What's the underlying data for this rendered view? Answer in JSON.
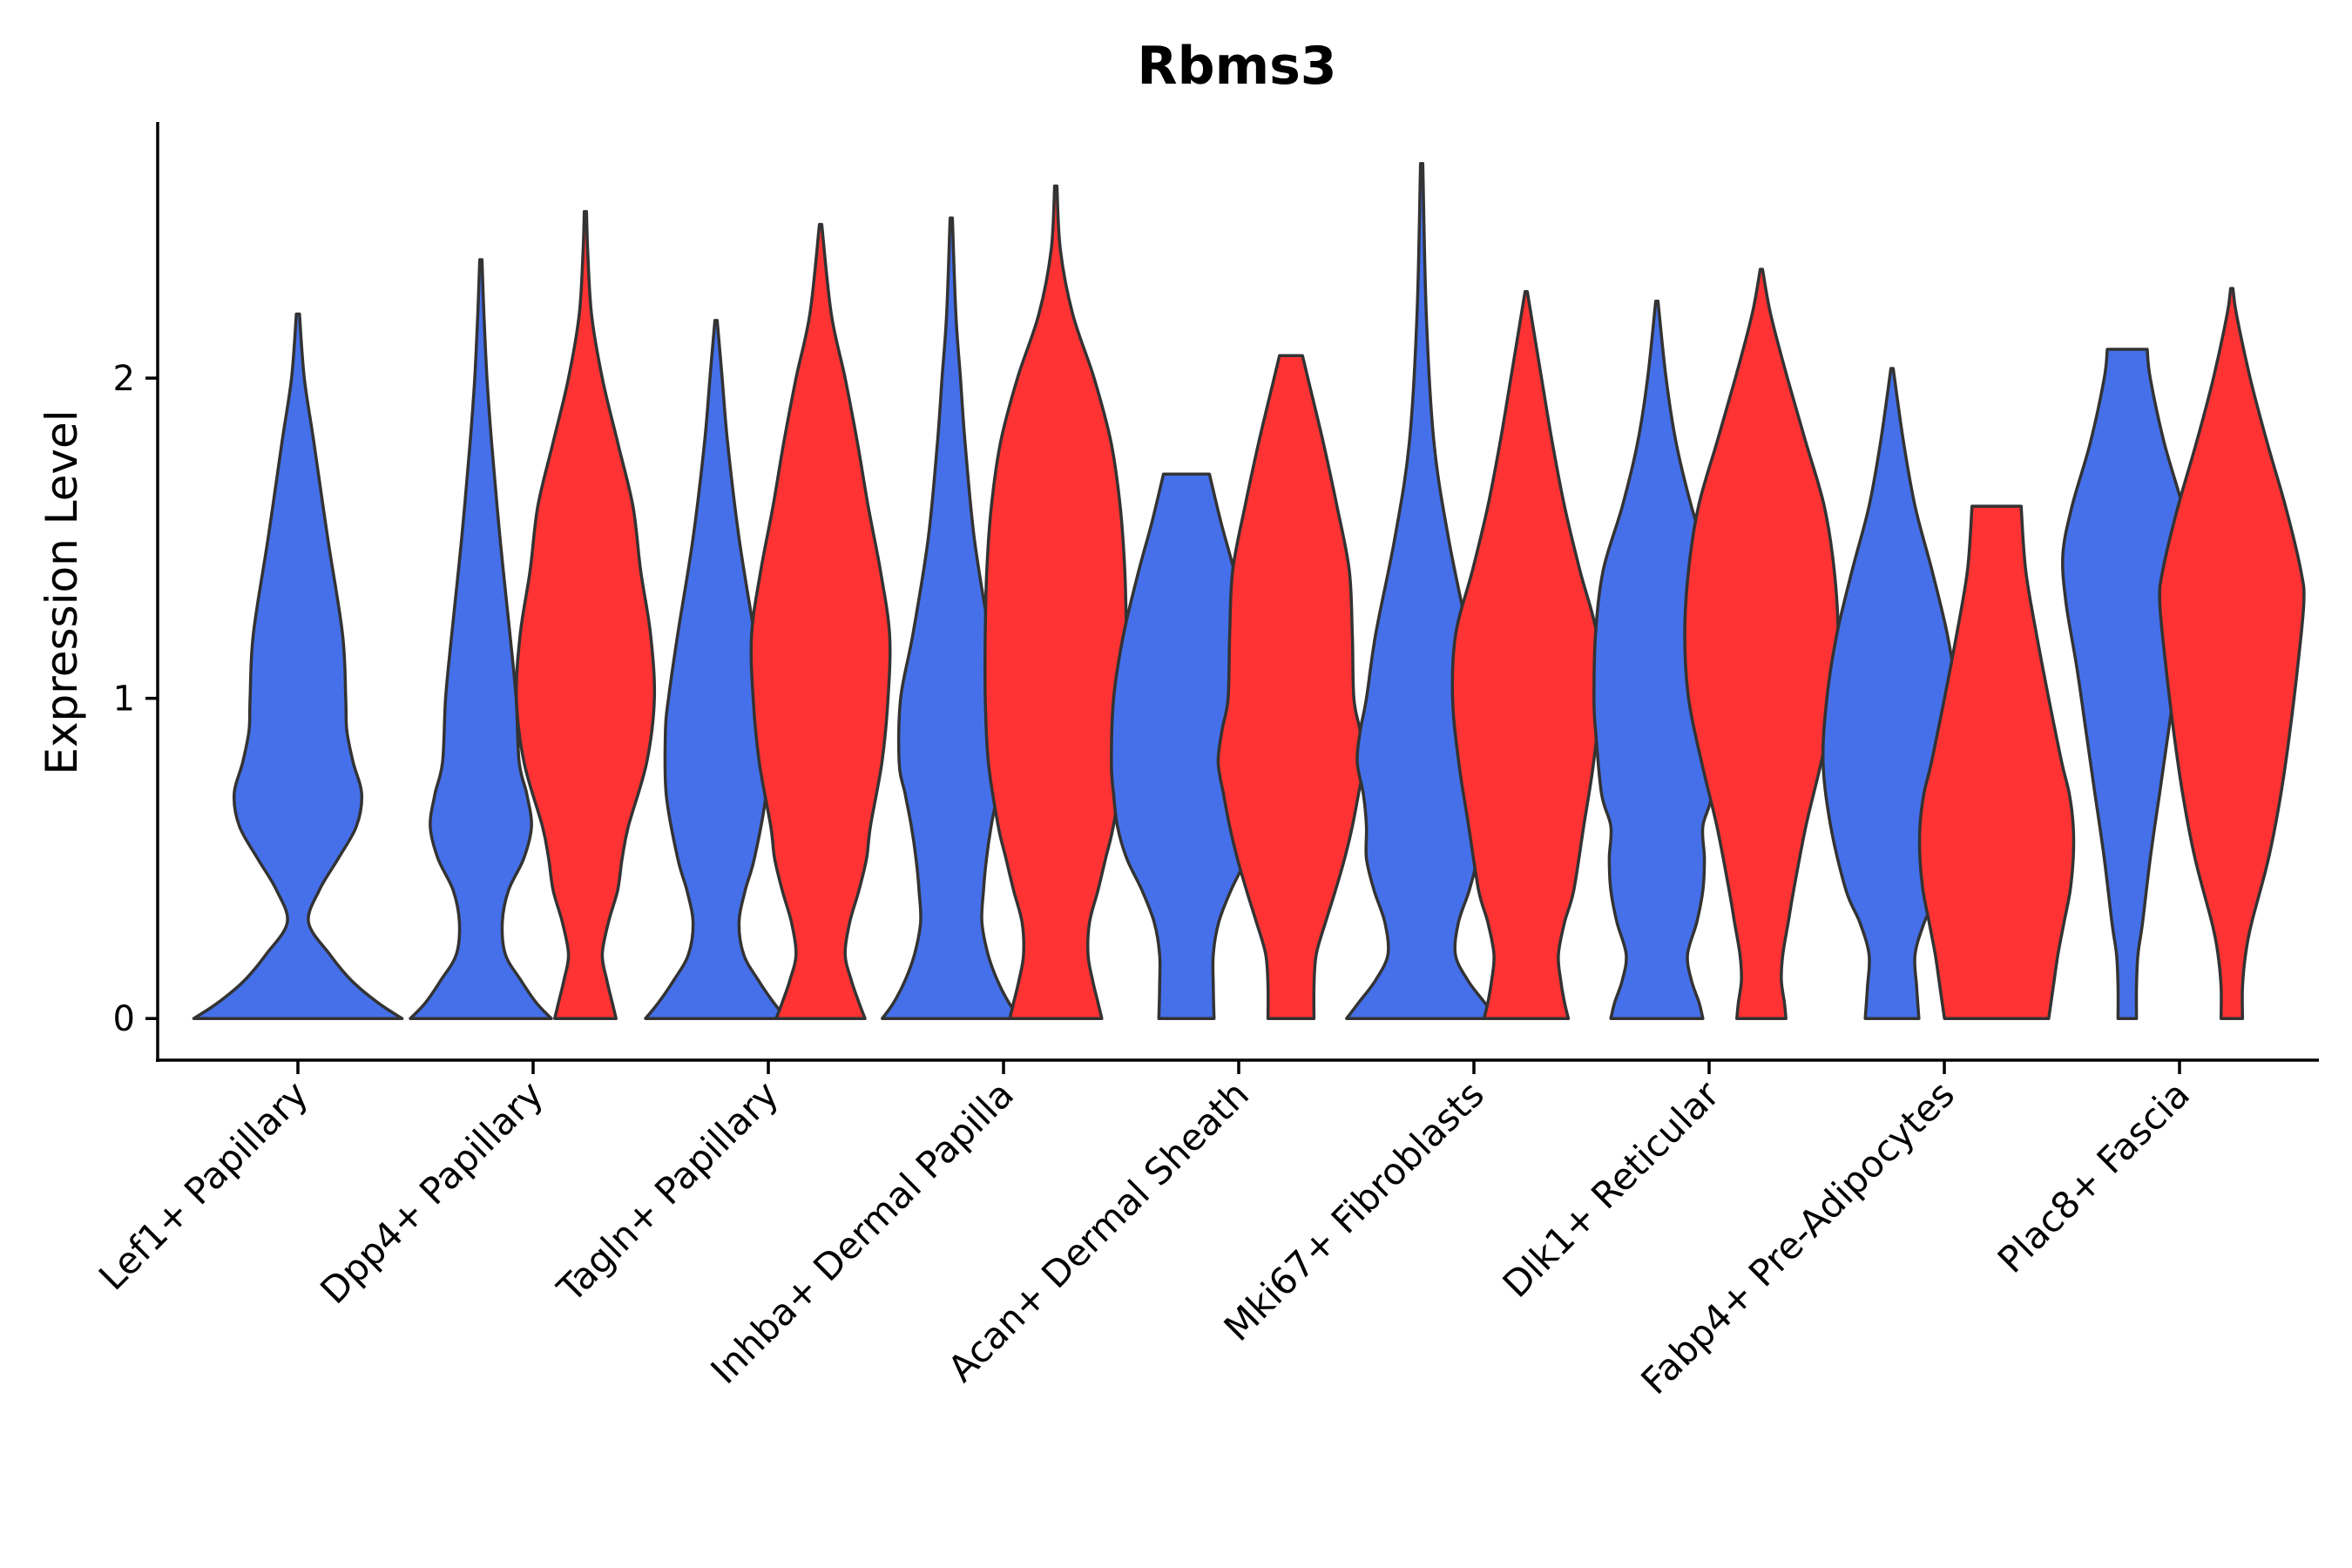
{
  "chart_data": {
    "type": "violin",
    "title": "Rbms3",
    "xlabel": "",
    "ylabel": "Expression Level",
    "ylim": [
      -0.13,
      2.8
    ],
    "yticks": [
      0,
      1,
      2
    ],
    "colors": {
      "group1": "#4570EA",
      "group2": "#FF3333"
    },
    "categories": [
      "Lef1+ Papillary",
      "Dpp4+ Papillary",
      "Tagln+ Papillary",
      "Inhba+ Dermal Papilla",
      "Acan+ Dermal Sheath",
      "Mki67+ Fibroblasts",
      "Dlk1+ Reticular",
      "Fabp4+ Pre-Adipocytes",
      "Plac8+ Fascia"
    ],
    "violins": [
      {
        "category": "Lef1+ Papillary",
        "group": 1,
        "max": 2.2,
        "profile": [
          [
            0,
            0.98
          ],
          [
            0.05,
            0.75
          ],
          [
            0.12,
            0.5
          ],
          [
            0.2,
            0.3
          ],
          [
            0.3,
            0.1
          ],
          [
            0.4,
            0.2
          ],
          [
            0.5,
            0.38
          ],
          [
            0.6,
            0.55
          ],
          [
            0.7,
            0.6
          ],
          [
            0.8,
            0.52
          ],
          [
            0.9,
            0.46
          ],
          [
            1.0,
            0.45
          ],
          [
            1.2,
            0.42
          ],
          [
            1.5,
            0.28
          ],
          [
            1.8,
            0.15
          ],
          [
            2.0,
            0.06
          ],
          [
            2.2,
            0.015
          ]
        ]
      },
      {
        "category": "Dpp4+ Papillary",
        "group": 1,
        "max": 2.37,
        "profile": [
          [
            0,
            0.92
          ],
          [
            0.05,
            0.72
          ],
          [
            0.12,
            0.52
          ],
          [
            0.2,
            0.32
          ],
          [
            0.3,
            0.28
          ],
          [
            0.4,
            0.36
          ],
          [
            0.5,
            0.56
          ],
          [
            0.6,
            0.66
          ],
          [
            0.7,
            0.6
          ],
          [
            0.8,
            0.5
          ],
          [
            1.0,
            0.46
          ],
          [
            1.2,
            0.38
          ],
          [
            1.5,
            0.25
          ],
          [
            1.8,
            0.14
          ],
          [
            2.0,
            0.08
          ],
          [
            2.2,
            0.04
          ],
          [
            2.37,
            0.015
          ]
        ]
      },
      {
        "category": "Dpp4+ Papillary",
        "group": 2,
        "max": 2.52,
        "profile": [
          [
            0,
            0.4
          ],
          [
            0.05,
            0.35
          ],
          [
            0.12,
            0.28
          ],
          [
            0.2,
            0.22
          ],
          [
            0.3,
            0.3
          ],
          [
            0.4,
            0.42
          ],
          [
            0.5,
            0.48
          ],
          [
            0.6,
            0.56
          ],
          [
            0.8,
            0.8
          ],
          [
            1.0,
            0.9
          ],
          [
            1.2,
            0.85
          ],
          [
            1.4,
            0.72
          ],
          [
            1.6,
            0.62
          ],
          [
            1.8,
            0.42
          ],
          [
            2.0,
            0.22
          ],
          [
            2.2,
            0.08
          ],
          [
            2.4,
            0.03
          ],
          [
            2.52,
            0.015
          ]
        ]
      },
      {
        "category": "Tagln+ Papillary",
        "group": 1,
        "max": 2.18,
        "profile": [
          [
            0,
            0.92
          ],
          [
            0.05,
            0.75
          ],
          [
            0.12,
            0.55
          ],
          [
            0.2,
            0.36
          ],
          [
            0.3,
            0.3
          ],
          [
            0.4,
            0.38
          ],
          [
            0.5,
            0.5
          ],
          [
            0.7,
            0.65
          ],
          [
            0.9,
            0.66
          ],
          [
            1.0,
            0.62
          ],
          [
            1.2,
            0.5
          ],
          [
            1.5,
            0.3
          ],
          [
            1.8,
            0.15
          ],
          [
            2.0,
            0.08
          ],
          [
            2.18,
            0.015
          ]
        ]
      },
      {
        "category": "Tagln+ Papillary",
        "group": 2,
        "max": 2.48,
        "profile": [
          [
            0,
            0.58
          ],
          [
            0.05,
            0.5
          ],
          [
            0.12,
            0.4
          ],
          [
            0.2,
            0.32
          ],
          [
            0.3,
            0.38
          ],
          [
            0.4,
            0.5
          ],
          [
            0.5,
            0.6
          ],
          [
            0.6,
            0.65
          ],
          [
            0.8,
            0.8
          ],
          [
            1.0,
            0.88
          ],
          [
            1.2,
            0.9
          ],
          [
            1.4,
            0.78
          ],
          [
            1.6,
            0.62
          ],
          [
            1.8,
            0.48
          ],
          [
            2.0,
            0.32
          ],
          [
            2.2,
            0.14
          ],
          [
            2.48,
            0.015
          ]
        ]
      },
      {
        "category": "Inhba+ Dermal Papilla",
        "group": 1,
        "max": 2.5,
        "profile": [
          [
            0,
            0.9
          ],
          [
            0.05,
            0.75
          ],
          [
            0.12,
            0.6
          ],
          [
            0.2,
            0.48
          ],
          [
            0.3,
            0.4
          ],
          [
            0.4,
            0.42
          ],
          [
            0.5,
            0.46
          ],
          [
            0.6,
            0.52
          ],
          [
            0.7,
            0.6
          ],
          [
            0.8,
            0.68
          ],
          [
            1.0,
            0.66
          ],
          [
            1.2,
            0.5
          ],
          [
            1.5,
            0.3
          ],
          [
            1.8,
            0.18
          ],
          [
            2.0,
            0.12
          ],
          [
            2.2,
            0.06
          ],
          [
            2.5,
            0.015
          ]
        ]
      },
      {
        "category": "Inhba+ Dermal Papilla",
        "group": 2,
        "max": 2.6,
        "profile": [
          [
            0,
            0.6
          ],
          [
            0.05,
            0.55
          ],
          [
            0.12,
            0.48
          ],
          [
            0.2,
            0.42
          ],
          [
            0.3,
            0.44
          ],
          [
            0.4,
            0.55
          ],
          [
            0.5,
            0.65
          ],
          [
            0.6,
            0.75
          ],
          [
            0.8,
            0.88
          ],
          [
            1.0,
            0.92
          ],
          [
            1.2,
            0.92
          ],
          [
            1.4,
            0.9
          ],
          [
            1.6,
            0.84
          ],
          [
            1.8,
            0.72
          ],
          [
            2.0,
            0.5
          ],
          [
            2.2,
            0.22
          ],
          [
            2.4,
            0.06
          ],
          [
            2.6,
            0.015
          ]
        ]
      },
      {
        "category": "Acan+ Dermal Sheath",
        "group": 1,
        "max": 1.7,
        "profile": [
          [
            0,
            0.36
          ],
          [
            0.1,
            0.35
          ],
          [
            0.2,
            0.35
          ],
          [
            0.3,
            0.42
          ],
          [
            0.4,
            0.58
          ],
          [
            0.5,
            0.78
          ],
          [
            0.6,
            0.9
          ],
          [
            0.7,
            0.95
          ],
          [
            0.8,
            0.98
          ],
          [
            1.0,
            0.95
          ],
          [
            1.2,
            0.82
          ],
          [
            1.4,
            0.62
          ],
          [
            1.55,
            0.45
          ],
          [
            1.7,
            0.3
          ]
        ]
      },
      {
        "category": "Acan+ Dermal Sheath",
        "group": 2,
        "max": 2.07,
        "profile": [
          [
            0,
            0.3
          ],
          [
            0.1,
            0.3
          ],
          [
            0.2,
            0.33
          ],
          [
            0.3,
            0.45
          ],
          [
            0.4,
            0.58
          ],
          [
            0.5,
            0.7
          ],
          [
            0.6,
            0.8
          ],
          [
            0.7,
            0.88
          ],
          [
            0.8,
            0.95
          ],
          [
            0.9,
            0.9
          ],
          [
            1.0,
            0.82
          ],
          [
            1.2,
            0.8
          ],
          [
            1.4,
            0.76
          ],
          [
            1.6,
            0.6
          ],
          [
            1.8,
            0.42
          ],
          [
            2.0,
            0.22
          ],
          [
            2.07,
            0.15
          ]
        ]
      },
      {
        "category": "Mki67+ Fibroblasts",
        "group": 1,
        "max": 2.67,
        "profile": [
          [
            0,
            0.98
          ],
          [
            0.05,
            0.82
          ],
          [
            0.12,
            0.6
          ],
          [
            0.2,
            0.44
          ],
          [
            0.3,
            0.48
          ],
          [
            0.4,
            0.62
          ],
          [
            0.5,
            0.72
          ],
          [
            0.6,
            0.72
          ],
          [
            0.7,
            0.76
          ],
          [
            0.8,
            0.84
          ],
          [
            0.9,
            0.8
          ],
          [
            1.0,
            0.72
          ],
          [
            1.2,
            0.6
          ],
          [
            1.5,
            0.35
          ],
          [
            1.8,
            0.16
          ],
          [
            2.2,
            0.06
          ],
          [
            2.67,
            0.015
          ]
        ]
      },
      {
        "category": "Mki67+ Fibroblasts",
        "group": 2,
        "max": 2.27,
        "profile": [
          [
            0,
            0.55
          ],
          [
            0.05,
            0.5
          ],
          [
            0.12,
            0.45
          ],
          [
            0.2,
            0.42
          ],
          [
            0.3,
            0.5
          ],
          [
            0.4,
            0.62
          ],
          [
            0.6,
            0.75
          ],
          [
            0.8,
            0.88
          ],
          [
            1.0,
            0.96
          ],
          [
            1.2,
            0.92
          ],
          [
            1.4,
            0.7
          ],
          [
            1.6,
            0.5
          ],
          [
            1.8,
            0.34
          ],
          [
            2.0,
            0.2
          ],
          [
            2.27,
            0.015
          ]
        ]
      },
      {
        "category": "Dlk1+ Reticular",
        "group": 1,
        "max": 2.24,
        "profile": [
          [
            0,
            0.6
          ],
          [
            0.05,
            0.55
          ],
          [
            0.12,
            0.45
          ],
          [
            0.2,
            0.4
          ],
          [
            0.3,
            0.52
          ],
          [
            0.4,
            0.6
          ],
          [
            0.5,
            0.62
          ],
          [
            0.6,
            0.6
          ],
          [
            0.7,
            0.72
          ],
          [
            0.9,
            0.8
          ],
          [
            1.0,
            0.82
          ],
          [
            1.2,
            0.8
          ],
          [
            1.4,
            0.7
          ],
          [
            1.6,
            0.45
          ],
          [
            1.8,
            0.25
          ],
          [
            2.0,
            0.12
          ],
          [
            2.24,
            0.015
          ]
        ]
      },
      {
        "category": "Dlk1+ Reticular",
        "group": 2,
        "max": 2.34,
        "profile": [
          [
            0,
            0.32
          ],
          [
            0.05,
            0.3
          ],
          [
            0.12,
            0.26
          ],
          [
            0.2,
            0.28
          ],
          [
            0.3,
            0.35
          ],
          [
            0.4,
            0.42
          ],
          [
            0.6,
            0.58
          ],
          [
            0.8,
            0.78
          ],
          [
            1.0,
            0.95
          ],
          [
            1.2,
            1.0
          ],
          [
            1.4,
            0.95
          ],
          [
            1.6,
            0.82
          ],
          [
            1.8,
            0.58
          ],
          [
            2.0,
            0.34
          ],
          [
            2.2,
            0.12
          ],
          [
            2.34,
            0.015
          ]
        ]
      },
      {
        "category": "Fabp4+ Pre-Adipocytes",
        "group": 1,
        "max": 2.03,
        "profile": [
          [
            0,
            0.35
          ],
          [
            0.1,
            0.32
          ],
          [
            0.2,
            0.3
          ],
          [
            0.3,
            0.42
          ],
          [
            0.4,
            0.6
          ],
          [
            0.6,
            0.8
          ],
          [
            0.8,
            0.9
          ],
          [
            1.0,
            0.85
          ],
          [
            1.2,
            0.72
          ],
          [
            1.4,
            0.52
          ],
          [
            1.6,
            0.3
          ],
          [
            1.8,
            0.15
          ],
          [
            2.03,
            0.015
          ]
        ]
      },
      {
        "category": "Fabp4+ Pre-Adipocytes",
        "group": 2,
        "max": 1.6,
        "profile": [
          [
            0,
            0.68
          ],
          [
            0.1,
            0.74
          ],
          [
            0.2,
            0.8
          ],
          [
            0.3,
            0.88
          ],
          [
            0.4,
            0.96
          ],
          [
            0.5,
            1.0
          ],
          [
            0.6,
            1.0
          ],
          [
            0.7,
            0.95
          ],
          [
            0.8,
            0.85
          ],
          [
            1.0,
            0.68
          ],
          [
            1.2,
            0.52
          ],
          [
            1.4,
            0.38
          ],
          [
            1.6,
            0.32
          ]
        ]
      },
      {
        "category": "Plac8+ Fascia",
        "group": 1,
        "max": 2.09,
        "profile": [
          [
            0,
            0.12
          ],
          [
            0.1,
            0.12
          ],
          [
            0.2,
            0.14
          ],
          [
            0.3,
            0.2
          ],
          [
            0.5,
            0.3
          ],
          [
            0.7,
            0.42
          ],
          [
            0.9,
            0.54
          ],
          [
            1.1,
            0.66
          ],
          [
            1.3,
            0.8
          ],
          [
            1.45,
            0.84
          ],
          [
            1.6,
            0.72
          ],
          [
            1.8,
            0.48
          ],
          [
            2.0,
            0.3
          ],
          [
            2.09,
            0.26
          ]
        ]
      },
      {
        "category": "Plac8+ Fascia",
        "group": 2,
        "max": 2.28,
        "profile": [
          [
            0,
            0.14
          ],
          [
            0.1,
            0.14
          ],
          [
            0.2,
            0.18
          ],
          [
            0.3,
            0.26
          ],
          [
            0.5,
            0.48
          ],
          [
            0.7,
            0.64
          ],
          [
            0.9,
            0.76
          ],
          [
            1.1,
            0.86
          ],
          [
            1.3,
            0.94
          ],
          [
            1.4,
            0.9
          ],
          [
            1.6,
            0.7
          ],
          [
            1.8,
            0.46
          ],
          [
            2.0,
            0.24
          ],
          [
            2.2,
            0.06
          ],
          [
            2.28,
            0.015
          ]
        ]
      }
    ]
  }
}
